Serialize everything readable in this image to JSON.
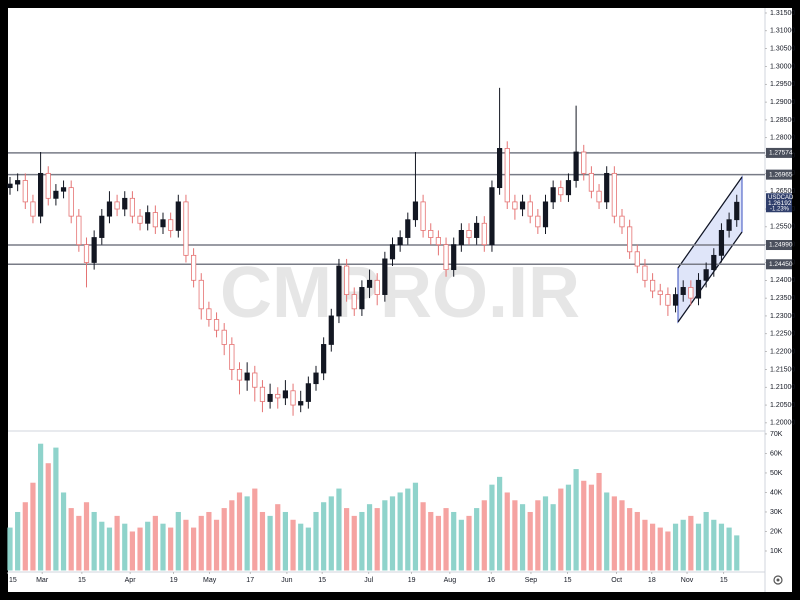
{
  "chart_data": {
    "type": "candlestick",
    "symbol": "USDCAD",
    "change": "-1.23%",
    "last_label": "1.26192",
    "watermark": "CMPRO.IR",
    "open": [
      1.266,
      1.267,
      1.268,
      1.262,
      1.258,
      1.27,
      1.263,
      1.265,
      1.266,
      1.258,
      1.25,
      1.245,
      1.252,
      1.258,
      1.262,
      1.26,
      1.263,
      1.258,
      1.256,
      1.259,
      1.255,
      1.257,
      1.254,
      1.262,
      1.247,
      1.24,
      1.232,
      1.229,
      1.226,
      1.222,
      1.215,
      1.212,
      1.214,
      1.21,
      1.206,
      1.208,
      1.207,
      1.209,
      1.205,
      1.206,
      1.211,
      1.214,
      1.222,
      1.23,
      1.244,
      1.236,
      1.232,
      1.238,
      1.24,
      1.236,
      1.246,
      1.25,
      1.252,
      1.257,
      1.262,
      1.254,
      1.252,
      1.25,
      1.243,
      1.25,
      1.254,
      1.252,
      1.256,
      1.25,
      1.266,
      1.277,
      1.262,
      1.26,
      1.262,
      1.258,
      1.255,
      1.262,
      1.266,
      1.264,
      1.268,
      1.276,
      1.27,
      1.265,
      1.262,
      1.27,
      1.258,
      1.255,
      1.248,
      1.244,
      1.24,
      1.237,
      1.236,
      1.233,
      1.236,
      1.238,
      1.235,
      1.24,
      1.243,
      1.247,
      1.254,
      1.257
    ],
    "high": [
      1.269,
      1.27,
      1.27,
      1.264,
      1.276,
      1.272,
      1.267,
      1.268,
      1.268,
      1.26,
      1.252,
      1.254,
      1.26,
      1.265,
      1.264,
      1.265,
      1.265,
      1.26,
      1.261,
      1.261,
      1.259,
      1.259,
      1.264,
      1.264,
      1.249,
      1.242,
      1.234,
      1.231,
      1.228,
      1.224,
      1.217,
      1.217,
      1.216,
      1.212,
      1.211,
      1.21,
      1.212,
      1.211,
      1.209,
      1.213,
      1.216,
      1.224,
      1.232,
      1.246,
      1.246,
      1.238,
      1.24,
      1.243,
      1.242,
      1.248,
      1.252,
      1.254,
      1.259,
      1.276,
      1.264,
      1.256,
      1.254,
      1.252,
      1.252,
      1.256,
      1.256,
      1.258,
      1.258,
      1.268,
      1.294,
      1.279,
      1.264,
      1.264,
      1.264,
      1.26,
      1.264,
      1.268,
      1.268,
      1.27,
      1.289,
      1.278,
      1.272,
      1.267,
      1.272,
      1.272,
      1.26,
      1.257,
      1.25,
      1.246,
      1.242,
      1.239,
      1.238,
      1.238,
      1.24,
      1.24,
      1.242,
      1.245,
      1.249,
      1.256,
      1.259,
      1.264
    ],
    "low": [
      1.264,
      1.265,
      1.26,
      1.256,
      1.256,
      1.261,
      1.261,
      1.263,
      1.256,
      1.248,
      1.238,
      1.243,
      1.25,
      1.256,
      1.258,
      1.258,
      1.256,
      1.254,
      1.254,
      1.253,
      1.253,
      1.252,
      1.252,
      1.245,
      1.238,
      1.229,
      1.227,
      1.224,
      1.219,
      1.212,
      1.208,
      1.209,
      1.206,
      1.203,
      1.204,
      1.204,
      1.205,
      1.202,
      1.203,
      1.204,
      1.209,
      1.212,
      1.22,
      1.228,
      1.234,
      1.23,
      1.23,
      1.235,
      1.233,
      1.234,
      1.244,
      1.248,
      1.25,
      1.255,
      1.252,
      1.25,
      1.247,
      1.241,
      1.241,
      1.248,
      1.25,
      1.25,
      1.248,
      1.248,
      1.264,
      1.26,
      1.257,
      1.258,
      1.256,
      1.253,
      1.253,
      1.26,
      1.262,
      1.262,
      1.266,
      1.268,
      1.263,
      1.26,
      1.26,
      1.256,
      1.253,
      1.246,
      1.242,
      1.238,
      1.235,
      1.233,
      1.23,
      1.231,
      1.234,
      1.233,
      1.233,
      1.238,
      1.241,
      1.245,
      1.252,
      1.255
    ],
    "close": [
      1.267,
      1.268,
      1.262,
      1.258,
      1.27,
      1.263,
      1.265,
      1.266,
      1.258,
      1.25,
      1.245,
      1.252,
      1.258,
      1.262,
      1.26,
      1.263,
      1.258,
      1.256,
      1.259,
      1.255,
      1.257,
      1.254,
      1.262,
      1.247,
      1.24,
      1.232,
      1.229,
      1.226,
      1.222,
      1.215,
      1.212,
      1.214,
      1.21,
      1.206,
      1.208,
      1.207,
      1.209,
      1.205,
      1.206,
      1.211,
      1.214,
      1.222,
      1.23,
      1.244,
      1.236,
      1.232,
      1.238,
      1.24,
      1.236,
      1.246,
      1.25,
      1.252,
      1.257,
      1.262,
      1.254,
      1.252,
      1.25,
      1.243,
      1.25,
      1.254,
      1.252,
      1.256,
      1.25,
      1.266,
      1.277,
      1.262,
      1.26,
      1.262,
      1.258,
      1.255,
      1.262,
      1.266,
      1.264,
      1.268,
      1.276,
      1.27,
      1.265,
      1.262,
      1.27,
      1.258,
      1.255,
      1.248,
      1.244,
      1.24,
      1.237,
      1.236,
      1.233,
      1.236,
      1.238,
      1.235,
      1.24,
      1.243,
      1.247,
      1.254,
      1.257,
      1.2619
    ],
    "volume": [
      22000,
      30000,
      35000,
      45000,
      65000,
      55000,
      63000,
      40000,
      32000,
      28000,
      35000,
      30000,
      25000,
      22000,
      28000,
      24000,
      20000,
      22000,
      25000,
      28000,
      24000,
      22000,
      30000,
      26000,
      22000,
      28000,
      30000,
      26000,
      32000,
      36000,
      40000,
      38000,
      42000,
      30000,
      28000,
      34000,
      30000,
      26000,
      24000,
      22000,
      30000,
      35000,
      38000,
      42000,
      32000,
      28000,
      30000,
      34000,
      32000,
      36000,
      38000,
      40000,
      42000,
      45000,
      35000,
      30000,
      28000,
      32000,
      30000,
      26000,
      28000,
      32000,
      36000,
      44000,
      48000,
      40000,
      36000,
      34000,
      30000,
      36000,
      38000,
      34000,
      42000,
      44000,
      52000,
      46000,
      44000,
      50000,
      40000,
      38000,
      36000,
      32000,
      30000,
      26000,
      24000,
      22000,
      20000,
      24000,
      26000,
      28000,
      24000,
      30000,
      26000,
      24000,
      22000,
      18000
    ],
    "up_color": "#131722",
    "down_color": "#e57373",
    "volume_up_color": "#8fd3cb",
    "volume_down_color": "#f5a3a1",
    "ylim": [
      1.198,
      1.3164
    ],
    "yticks": [
      {
        "value": 1.2,
        "label": "1.20000"
      },
      {
        "value": 1.205,
        "label": "1.20500"
      },
      {
        "value": 1.21,
        "label": "1.21000"
      },
      {
        "value": 1.215,
        "label": "1.21500"
      },
      {
        "value": 1.22,
        "label": "1.22000"
      },
      {
        "value": 1.225,
        "label": "1.22500"
      },
      {
        "value": 1.23,
        "label": "1.23000"
      },
      {
        "value": 1.235,
        "label": "1.23500"
      },
      {
        "value": 1.24,
        "label": "1.24000"
      },
      {
        "value": 1.245,
        "label": "1.24500"
      },
      {
        "value": 1.25,
        "label": "1.25000"
      },
      {
        "value": 1.255,
        "label": "1.25500"
      },
      {
        "value": 1.26,
        "label": "1.26000"
      },
      {
        "value": 1.265,
        "label": "1.26500"
      },
      {
        "value": 1.27,
        "label": "1.27000"
      },
      {
        "value": 1.275,
        "label": "1.27500"
      },
      {
        "value": 1.28,
        "label": "1.28000"
      },
      {
        "value": 1.285,
        "label": "1.28500"
      },
      {
        "value": 1.29,
        "label": "1.29000"
      },
      {
        "value": 1.295,
        "label": "1.29500"
      },
      {
        "value": 1.3,
        "label": "1.30000"
      },
      {
        "value": 1.305,
        "label": "1.30500"
      },
      {
        "value": 1.31,
        "label": "1.31000"
      },
      {
        "value": 1.315,
        "label": "1.31500"
      }
    ],
    "levels": [
      {
        "value": 1.27574,
        "label": "1.27574"
      },
      {
        "value": 1.26965,
        "label": "1.26965"
      },
      {
        "value": 1.2499,
        "label": "1.24990"
      },
      {
        "value": 1.2445,
        "label": "1.24450"
      }
    ],
    "volume_ylim": [
      0,
      71000
    ],
    "volume_ticks": [
      {
        "value": 10000,
        "label": "10K"
      },
      {
        "value": 20000,
        "label": "20K"
      },
      {
        "value": 30000,
        "label": "30K"
      },
      {
        "value": 40000,
        "label": "40K"
      },
      {
        "value": 50000,
        "label": "50K"
      },
      {
        "value": 60000,
        "label": "60K"
      },
      {
        "value": 70000,
        "label": "70K"
      }
    ],
    "xticks": [
      {
        "value": -0.3,
        "label": "15"
      },
      {
        "value": 4.2,
        "label": "Mar"
      },
      {
        "value": 9.4,
        "label": "15"
      },
      {
        "value": 15.7,
        "label": "Apr"
      },
      {
        "value": 21.4,
        "label": "19"
      },
      {
        "value": 26.1,
        "label": "May"
      },
      {
        "value": 31.4,
        "label": "17"
      },
      {
        "value": 36.2,
        "label": "Jun"
      },
      {
        "value": 40.8,
        "label": "15"
      },
      {
        "value": 46.9,
        "label": "Jul"
      },
      {
        "value": 52.5,
        "label": "19"
      },
      {
        "value": 57.5,
        "label": "Aug"
      },
      {
        "value": 62.9,
        "label": "16"
      },
      {
        "value": 68.1,
        "label": "Sep"
      },
      {
        "value": 72.9,
        "label": "15"
      },
      {
        "value": 79.3,
        "label": "Oct"
      },
      {
        "value": 83.9,
        "label": "18"
      },
      {
        "value": 88.5,
        "label": "Nov"
      },
      {
        "value": 93.3,
        "label": "15"
      }
    ]
  }
}
